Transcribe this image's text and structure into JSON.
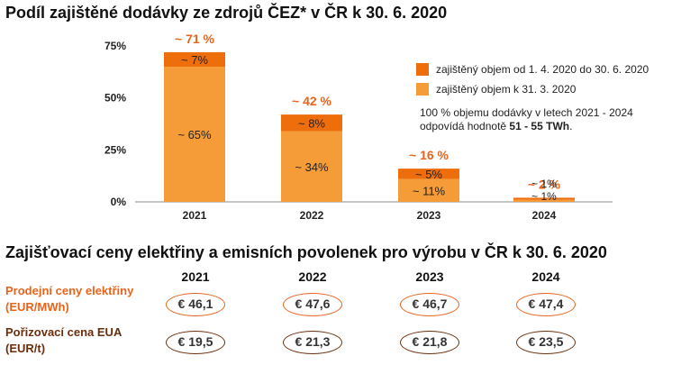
{
  "title": "Podíl zajištěné dodávky ze zdrojů ČEZ* v ČR k 30. 6. 2020",
  "chart_data": {
    "type": "bar",
    "stacked": true,
    "categories": [
      "2021",
      "2022",
      "2023",
      "2024"
    ],
    "series": [
      {
        "name": "zajištěný objem k 31. 3. 2020",
        "color": "#f59b38",
        "values": [
          65,
          34,
          11,
          1
        ],
        "labels": [
          "~ 65%",
          "~ 34%",
          "~ 11%",
          "~ 1%"
        ]
      },
      {
        "name": "zajištěný objem od 1. 4. 2020 do 30. 6. 2020",
        "color": "#ef6e0c",
        "values": [
          7,
          8,
          5,
          1
        ],
        "labels": [
          "~ 7%",
          "~ 8%",
          "~ 5%",
          "~ 1%"
        ]
      }
    ],
    "totals": [
      "~ 71 %",
      "~ 42 %",
      "~ 16 %",
      "~ 2 %"
    ],
    "total_color": "#e8641b",
    "yticks": [
      "0%",
      "25%",
      "50%",
      "75%"
    ],
    "ylim": [
      0,
      75
    ],
    "grid": false,
    "legend_position": "right"
  },
  "note": {
    "line1": "100 % objemu dodávky v letech 2021 - 2024",
    "line2_prefix": "odpovídá hodnotě ",
    "line2_bold": "51 - 55 TWh",
    "line2_suffix": "."
  },
  "prices": {
    "title": "Zajišťovací ceny elektřiny a emisních povolenek pro výrobu v ČR k 30. 6. 2020",
    "years": [
      "2021",
      "2022",
      "2023",
      "2024"
    ],
    "rows": [
      {
        "label_line1": "Prodejní ceny elektřiny",
        "label_line2": "(EUR/MWh)",
        "color": "#e8641b",
        "values": [
          "€ 46,1",
          "€ 47,6",
          "€ 46,7",
          "€ 47,4"
        ]
      },
      {
        "label_line1": "Pořizovací cena EUA",
        "label_line2": "(EUR/t)",
        "color": "#6b2e0c",
        "values": [
          "€ 19,5",
          "€ 21,3",
          "€ 21,8",
          "€ 23,5"
        ]
      }
    ]
  }
}
